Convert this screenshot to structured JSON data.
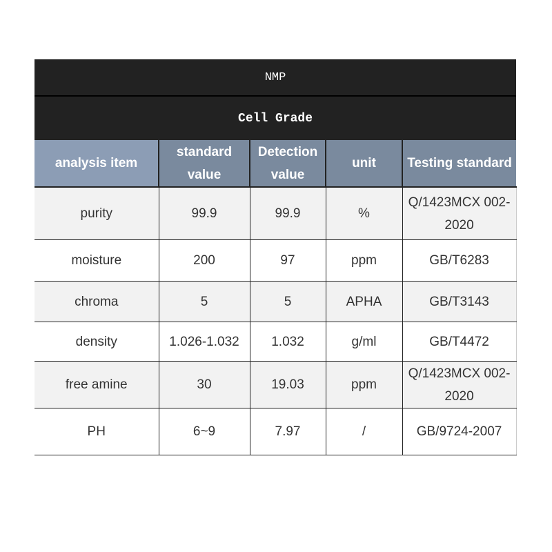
{
  "title": "NMP",
  "subtitle": "Cell Grade",
  "headers": [
    "analysis item",
    "standard value",
    "Detection value",
    "unit",
    "Testing standard"
  ],
  "rows": [
    [
      "purity",
      "99.9",
      "99.9",
      "%",
      "Q/1423MCX 002-2020"
    ],
    [
      "moisture",
      "200",
      "97",
      "ppm",
      "GB/T6283"
    ],
    [
      "chroma",
      "5",
      "5",
      "APHA",
      "GB/T3143"
    ],
    [
      "density",
      "1.026-1.032",
      "1.032",
      "g/ml",
      "GB/T4472"
    ],
    [
      "free amine",
      "30",
      "19.03",
      "ppm",
      "Q/1423MCX 002-2020"
    ],
    [
      "PH",
      "6~9",
      "7.97",
      "/",
      "GB/9724-2007"
    ]
  ]
}
